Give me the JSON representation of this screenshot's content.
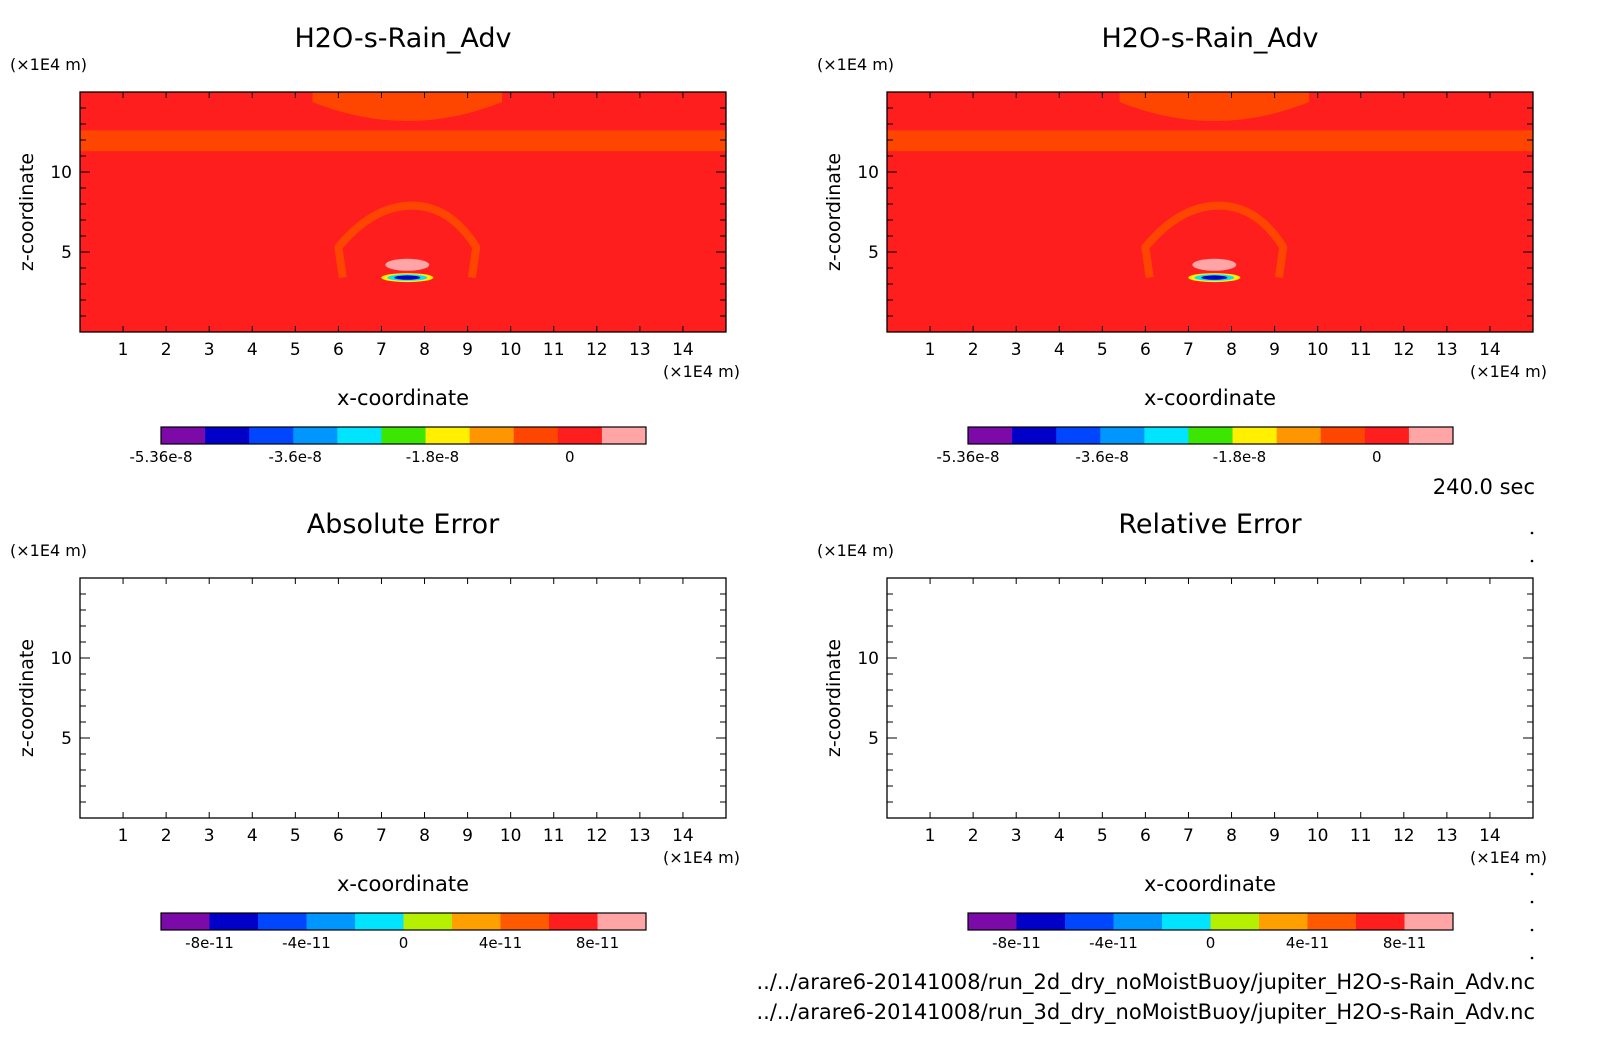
{
  "time_label": "240.0 sec",
  "file_paths": [
    "../../arare6-20141008/run_2d_dry_noMoistBuoy/jupiter_H2O-s-Rain_Adv.nc",
    "../../arare6-20141008/run_3d_dry_noMoistBuoy/jupiter_H2O-s-Rain_Adv.nc"
  ],
  "chart_data": [
    {
      "type": "heatmap",
      "title": "H2O-s-Rain_Adv",
      "xlabel": "x-coordinate",
      "ylabel": "z-coordinate",
      "x_unit": "(×1E4 m)",
      "y_unit": "(×1E4 m)",
      "xlim": [
        0,
        15
      ],
      "ylim": [
        0,
        15
      ],
      "x_ticks": [
        1,
        2,
        3,
        4,
        5,
        6,
        7,
        8,
        9,
        10,
        11,
        12,
        13,
        14
      ],
      "y_ticks": [
        5,
        10
      ],
      "field": "filled",
      "colorbar": {
        "colors": [
          "#7b0aa8",
          "#0000c8",
          "#0046ff",
          "#0096ff",
          "#00e4ff",
          "#3ce600",
          "#fff000",
          "#ff9600",
          "#ff4600",
          "#ff1e1e",
          "#ffa5a5"
        ],
        "tick_labels": [
          "-5.36e-8",
          "-3.6e-8",
          "-1.8e-8",
          "0"
        ],
        "tick_values": [
          -5.36e-08,
          -3.6e-08,
          -1.8e-08,
          0
        ],
        "vmin": -5.36e-08,
        "vmax": 1e-08
      }
    },
    {
      "type": "heatmap",
      "title": "H2O-s-Rain_Adv",
      "xlabel": "x-coordinate",
      "ylabel": "z-coordinate",
      "x_unit": "(×1E4 m)",
      "y_unit": "(×1E4 m)",
      "xlim": [
        0,
        15
      ],
      "ylim": [
        0,
        15
      ],
      "x_ticks": [
        1,
        2,
        3,
        4,
        5,
        6,
        7,
        8,
        9,
        10,
        11,
        12,
        13,
        14
      ],
      "y_ticks": [
        5,
        10
      ],
      "field": "filled",
      "colorbar": {
        "colors": [
          "#7b0aa8",
          "#0000c8",
          "#0046ff",
          "#0096ff",
          "#00e4ff",
          "#3ce600",
          "#fff000",
          "#ff9600",
          "#ff4600",
          "#ff1e1e",
          "#ffa5a5"
        ],
        "tick_labels": [
          "-5.36e-8",
          "-3.6e-8",
          "-1.8e-8",
          "0"
        ],
        "tick_values": [
          -5.36e-08,
          -3.6e-08,
          -1.8e-08,
          0
        ],
        "vmin": -5.36e-08,
        "vmax": 1e-08
      }
    },
    {
      "type": "heatmap",
      "title": "Absolute Error",
      "xlabel": "x-coordinate",
      "ylabel": "z-coordinate",
      "x_unit": "(×1E4 m)",
      "y_unit": "(×1E4 m)",
      "xlim": [
        0,
        15
      ],
      "ylim": [
        0,
        15
      ],
      "x_ticks": [
        1,
        2,
        3,
        4,
        5,
        6,
        7,
        8,
        9,
        10,
        11,
        12,
        13,
        14
      ],
      "y_ticks": [
        5,
        10
      ],
      "field": "empty",
      "colorbar": {
        "colors": [
          "#7b0aa8",
          "#0000c8",
          "#0046ff",
          "#0096ff",
          "#00e4ff",
          "#b4f000",
          "#ffa000",
          "#ff5a00",
          "#ff1e1e",
          "#ffa5a5"
        ],
        "tick_labels": [
          "-8e-11",
          "-4e-11",
          "0",
          "4e-11",
          "8e-11"
        ],
        "tick_values": [
          -8e-11,
          -4e-11,
          0,
          4e-11,
          8e-11
        ],
        "vmin": -1e-10,
        "vmax": 1e-10
      }
    },
    {
      "type": "heatmap",
      "title": "Relative Error",
      "xlabel": "x-coordinate",
      "ylabel": "z-coordinate",
      "x_unit": "(×1E4 m)",
      "y_unit": "(×1E4 m)",
      "xlim": [
        0,
        15
      ],
      "ylim": [
        0,
        15
      ],
      "x_ticks": [
        1,
        2,
        3,
        4,
        5,
        6,
        7,
        8,
        9,
        10,
        11,
        12,
        13,
        14
      ],
      "y_ticks": [
        5,
        10
      ],
      "field": "empty",
      "colorbar": {
        "colors": [
          "#7b0aa8",
          "#0000c8",
          "#0046ff",
          "#0096ff",
          "#00e4ff",
          "#b4f000",
          "#ffa000",
          "#ff5a00",
          "#ff1e1e",
          "#ffa5a5"
        ],
        "tick_labels": [
          "-8e-11",
          "-4e-11",
          "0",
          "4e-11",
          "8e-11"
        ],
        "tick_values": [
          -8e-11,
          -4e-11,
          0,
          4e-11,
          8e-11
        ],
        "vmin": -1e-10,
        "vmax": 1e-10
      }
    }
  ]
}
